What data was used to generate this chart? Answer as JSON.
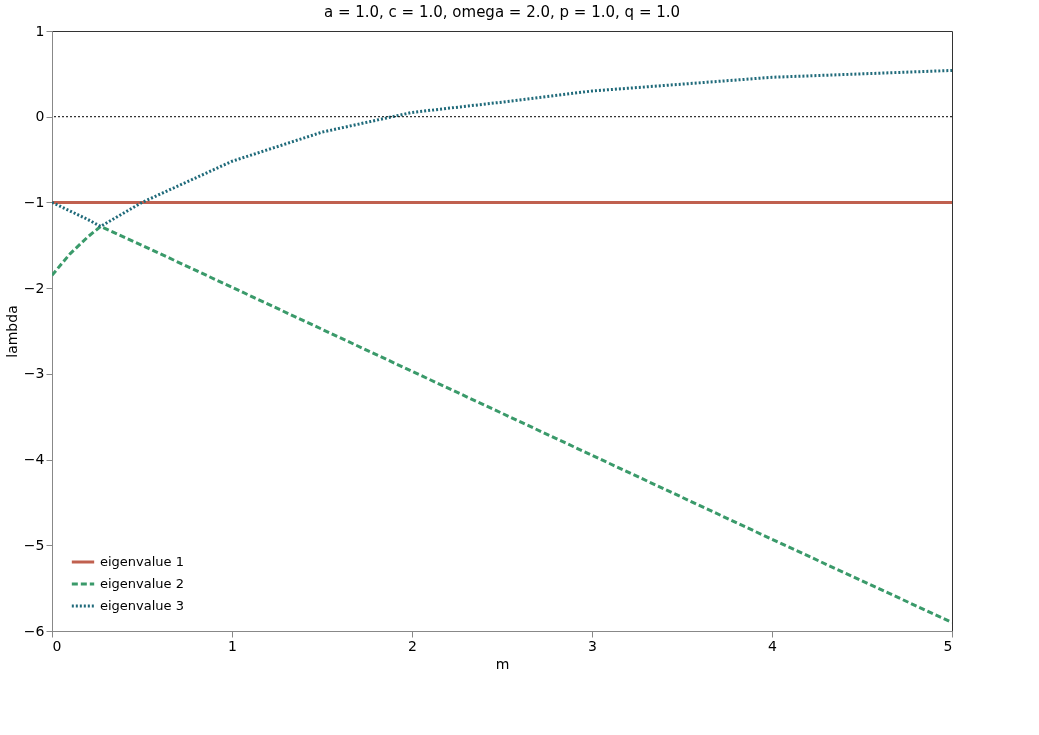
{
  "chart_data": {
    "type": "line",
    "title": "a = 1.0, c = 1.0, omega = 2.0, p = 1.0, q = 1.0",
    "xlabel": "m",
    "ylabel": "lambda",
    "xlim": [
      0,
      5
    ],
    "ylim": [
      -6,
      1
    ],
    "xticks": [
      0,
      1,
      2,
      3,
      4,
      5
    ],
    "yticks": [
      -6,
      -5,
      -4,
      -3,
      -2,
      -1,
      0,
      1
    ],
    "grid": false,
    "legend": "bottom left",
    "marker": "none",
    "ref_lines": [
      {
        "axis": "y",
        "value": 0,
        "color": "#000000",
        "line_style": "dotted"
      }
    ],
    "series": [
      {
        "name": "eigenvalue 1",
        "color": "#c0604f",
        "line_style": "solid",
        "x": [
          0,
          5
        ],
        "values": [
          -1,
          -1
        ]
      },
      {
        "name": "eigenvalue 2",
        "color": "#3a9a6a",
        "line_style": "dashed",
        "x": [
          0,
          0.1,
          0.2,
          0.27,
          0.5,
          1,
          2,
          3,
          4,
          5
        ],
        "values": [
          -1.85,
          -1.6,
          -1.4,
          -1.28,
          -1.5,
          -1.99,
          -2.97,
          -3.95,
          -4.93,
          -5.9
        ]
      },
      {
        "name": "eigenvalue 3",
        "color": "#1f6a7a",
        "line_style": "dotted",
        "x": [
          0,
          0.1,
          0.2,
          0.27,
          0.5,
          1,
          1.5,
          2,
          2.5,
          3,
          3.5,
          4,
          4.5,
          5
        ],
        "values": [
          -1,
          -1.1,
          -1.2,
          -1.28,
          -1.0,
          -0.52,
          -0.18,
          0.05,
          0.17,
          0.3,
          0.38,
          0.46,
          0.5,
          0.54
        ]
      }
    ]
  }
}
